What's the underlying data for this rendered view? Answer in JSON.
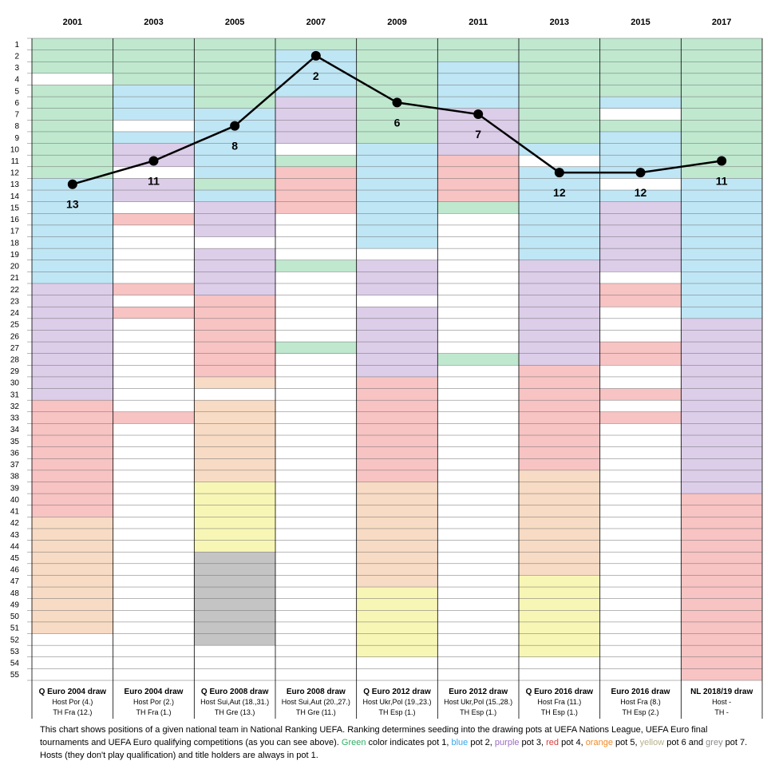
{
  "chart_data": {
    "type": "line",
    "years": [
      "2001",
      "2003",
      "2005",
      "2007",
      "2009",
      "2011",
      "2013",
      "2015",
      "2017"
    ],
    "rank_range": [
      1,
      55
    ],
    "ranks": [
      13,
      11,
      8,
      2,
      6,
      7,
      12,
      12,
      11
    ],
    "rank_labels": [
      "13",
      "11",
      "8",
      "2",
      "6",
      "7",
      "12",
      "12",
      "11"
    ],
    "pot_colors": {
      "1": "#bfe8cf",
      "2": "#bfe6f5",
      "3": "#dccde9",
      "4": "#f8c3c3",
      "5": "#f8dbc4",
      "6": "#f8f6b5",
      "7": "#c4c4c4",
      "0": "#ffffff"
    },
    "columns": [
      {
        "year": "2001",
        "competition": "Q Euro 2004 draw",
        "host": "Host Por (4.)",
        "holder": "TH Fra (12.)",
        "bands": [
          [
            1,
            3,
            1
          ],
          [
            4,
            4,
            0
          ],
          [
            5,
            11,
            1
          ],
          [
            12,
            12,
            1
          ],
          [
            13,
            21,
            2
          ],
          [
            22,
            31,
            3
          ],
          [
            32,
            41,
            4
          ],
          [
            42,
            51,
            5
          ],
          [
            52,
            55,
            0
          ]
        ]
      },
      {
        "year": "2003",
        "competition": "Euro 2004 draw",
        "host": "Host Por (2.)",
        "holder": "TH Fra (1.)",
        "bands": [
          [
            1,
            4,
            1
          ],
          [
            5,
            7,
            2
          ],
          [
            8,
            8,
            0
          ],
          [
            9,
            9,
            2
          ],
          [
            10,
            11,
            3
          ],
          [
            12,
            12,
            0
          ],
          [
            13,
            14,
            3
          ],
          [
            15,
            15,
            0
          ],
          [
            16,
            16,
            4
          ],
          [
            17,
            21,
            0
          ],
          [
            22,
            22,
            4
          ],
          [
            23,
            23,
            0
          ],
          [
            24,
            24,
            4
          ],
          [
            25,
            32,
            0
          ],
          [
            33,
            33,
            4
          ],
          [
            34,
            55,
            0
          ]
        ]
      },
      {
        "year": "2005",
        "competition": "Q Euro 2008 draw",
        "host": "Host Sui,Aut (18.,31.)",
        "holder": "TH Gre (13.)",
        "bands": [
          [
            1,
            6,
            1
          ],
          [
            7,
            12,
            2
          ],
          [
            13,
            13,
            1
          ],
          [
            14,
            14,
            2
          ],
          [
            15,
            17,
            3
          ],
          [
            18,
            18,
            0
          ],
          [
            19,
            22,
            3
          ],
          [
            23,
            29,
            4
          ],
          [
            30,
            30,
            5
          ],
          [
            31,
            31,
            0
          ],
          [
            32,
            38,
            5
          ],
          [
            39,
            44,
            6
          ],
          [
            45,
            52,
            7
          ],
          [
            53,
            55,
            0
          ]
        ]
      },
      {
        "year": "2007",
        "competition": "Euro 2008 draw",
        "host": "Host Sui,Aut (20.,27.)",
        "holder": "TH Gre (11.)",
        "bands": [
          [
            1,
            1,
            1
          ],
          [
            2,
            5,
            2
          ],
          [
            6,
            9,
            3
          ],
          [
            10,
            10,
            0
          ],
          [
            11,
            11,
            1
          ],
          [
            12,
            15,
            4
          ],
          [
            16,
            19,
            0
          ],
          [
            20,
            20,
            1
          ],
          [
            21,
            26,
            0
          ],
          [
            27,
            27,
            1
          ],
          [
            28,
            55,
            0
          ]
        ]
      },
      {
        "year": "2009",
        "competition": "Q Euro 2012 draw",
        "host": "Host Ukr,Pol (19.,23.)",
        "holder": "TH Esp (1.)",
        "bands": [
          [
            1,
            9,
            1
          ],
          [
            10,
            18,
            2
          ],
          [
            19,
            19,
            0
          ],
          [
            20,
            22,
            3
          ],
          [
            23,
            23,
            0
          ],
          [
            24,
            29,
            3
          ],
          [
            30,
            38,
            4
          ],
          [
            39,
            47,
            5
          ],
          [
            48,
            53,
            6
          ],
          [
            54,
            55,
            0
          ]
        ]
      },
      {
        "year": "2011",
        "competition": "Euro 2012 draw",
        "host": "Host Ukr,Pol (15.,28.)",
        "holder": "TH Esp (1.)",
        "bands": [
          [
            1,
            2,
            1
          ],
          [
            3,
            6,
            2
          ],
          [
            7,
            10,
            3
          ],
          [
            11,
            14,
            4
          ],
          [
            15,
            15,
            1
          ],
          [
            16,
            27,
            0
          ],
          [
            28,
            28,
            1
          ],
          [
            29,
            55,
            0
          ]
        ]
      },
      {
        "year": "2013",
        "competition": "Q Euro 2016 draw",
        "host": "Host Fra (11.)",
        "holder": "TH Esp (1.)",
        "bands": [
          [
            1,
            9,
            1
          ],
          [
            10,
            10,
            2
          ],
          [
            11,
            11,
            0
          ],
          [
            12,
            19,
            2
          ],
          [
            20,
            28,
            3
          ],
          [
            29,
            37,
            4
          ],
          [
            38,
            46,
            5
          ],
          [
            47,
            53,
            6
          ],
          [
            54,
            55,
            0
          ]
        ]
      },
      {
        "year": "2015",
        "competition": "Euro 2016 draw",
        "host": "Host Fra (8.)",
        "holder": "TH Esp (2.)",
        "bands": [
          [
            1,
            5,
            1
          ],
          [
            6,
            6,
            2
          ],
          [
            7,
            7,
            0
          ],
          [
            8,
            8,
            1
          ],
          [
            9,
            12,
            2
          ],
          [
            13,
            13,
            0
          ],
          [
            14,
            14,
            2
          ],
          [
            15,
            20,
            3
          ],
          [
            21,
            21,
            0
          ],
          [
            22,
            23,
            4
          ],
          [
            24,
            26,
            0
          ],
          [
            27,
            28,
            4
          ],
          [
            29,
            30,
            0
          ],
          [
            31,
            31,
            4
          ],
          [
            32,
            32,
            0
          ],
          [
            33,
            33,
            4
          ],
          [
            34,
            55,
            0
          ]
        ]
      },
      {
        "year": "2017",
        "competition": "NL 2018/19 draw",
        "host": "Host -",
        "holder": "TH -",
        "bands": [
          [
            1,
            12,
            1
          ],
          [
            13,
            24,
            2
          ],
          [
            25,
            39,
            3
          ],
          [
            40,
            55,
            4
          ]
        ]
      }
    ]
  },
  "caption": {
    "part1": "This chart shows positions of a given national team in National Ranking UEFA. Ranking determines seeding into the drawing pots at UEFA Nations League, UEFA Euro final tournaments and UEFA Euro qualifying competitions (as you can see above). ",
    "green": "Green",
    "part2": " color indicates pot 1, ",
    "blue": "blue",
    "part3": " pot 2, ",
    "purple": "purple",
    "part4": " pot 3, ",
    "red": "red",
    "part5": " pot 4, ",
    "orange": "orange",
    "part6": " pot 5, ",
    "yellow": "yellow",
    "part7": " pot 6 and ",
    "grey": "grey",
    "part8": " pot 7. Hosts (they don't play qualification) and title holders are always in pot 1."
  }
}
